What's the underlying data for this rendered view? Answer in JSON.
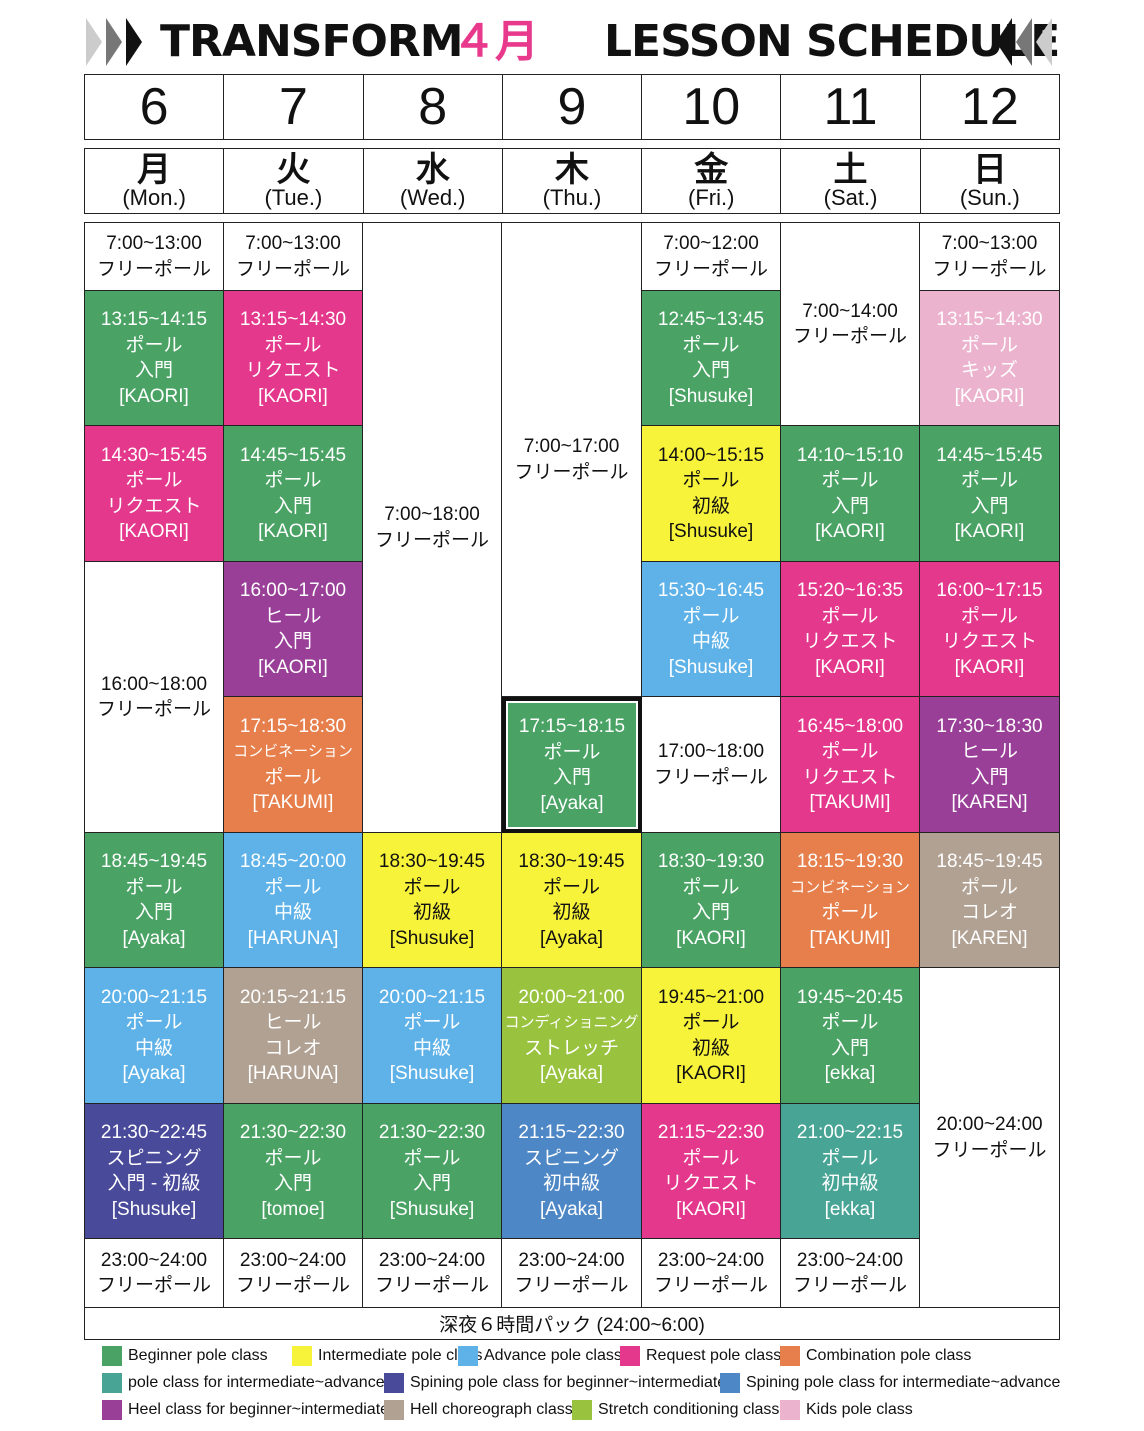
{
  "header": {
    "brand": "TRANSFORM",
    "month": "４月",
    "subtitle": "LESSON SCHEDULE",
    "month_color": "#e8398d"
  },
  "dates": [
    "6",
    "7",
    "8",
    "9",
    "10",
    "11",
    "12"
  ],
  "days": [
    {
      "kanji": "月",
      "en": "(Mon.)"
    },
    {
      "kanji": "火",
      "en": "(Tue.)"
    },
    {
      "kanji": "水",
      "en": "(Wed.)"
    },
    {
      "kanji": "木",
      "en": "(Thu.)"
    },
    {
      "kanji": "金",
      "en": "(Fri.)"
    },
    {
      "kanji": "土",
      "en": "(Sat.)"
    },
    {
      "kanji": "日",
      "en": "(Sun.)"
    }
  ],
  "colors": {
    "beginner": "#4aa365",
    "intermediate": "#f7f23a",
    "advance": "#5fb2e8",
    "request": "#e3388c",
    "combination": "#e67f4b",
    "inter_adv": "#48a495",
    "spin_beg": "#4a4a9b",
    "spin_inter": "#4e87c6",
    "heel": "#993f98",
    "heel_choreo": "#b0a193",
    "stretch": "#99c33e",
    "kids": "#ecb3ce",
    "free": "#ffffff"
  },
  "slots": [
    {
      "day": 0,
      "r0": 0,
      "r1": 1,
      "type": "free",
      "lines": [
        "7:00~13:00",
        "フリーポール"
      ]
    },
    {
      "day": 0,
      "r0": 1,
      "r1": 3,
      "type": "beginner",
      "lines": [
        "13:15~14:15",
        "ポール",
        "入門",
        "[KAORI]"
      ]
    },
    {
      "day": 0,
      "r0": 3,
      "r1": 5,
      "type": "request",
      "lines": [
        "14:30~15:45",
        "ポール",
        "リクエスト",
        "[KAORI]"
      ]
    },
    {
      "day": 0,
      "r0": 5,
      "r1": 9,
      "type": "free",
      "lines": [
        "16:00~18:00",
        "フリーポール"
      ]
    },
    {
      "day": 0,
      "r0": 9,
      "r1": 11,
      "type": "beginner",
      "lines": [
        "18:45~19:45",
        "ポール",
        "入門",
        "[Ayaka]"
      ]
    },
    {
      "day": 0,
      "r0": 11,
      "r1": 13,
      "type": "advance",
      "lines": [
        "20:00~21:15",
        "ポール",
        "中級",
        "[Ayaka]"
      ]
    },
    {
      "day": 0,
      "r0": 13,
      "r1": 15,
      "type": "spin_beg",
      "lines": [
        "21:30~22:45",
        "スピニング",
        "入門 - 初級",
        "[Shusuke]"
      ]
    },
    {
      "day": 0,
      "r0": 15,
      "r1": 16,
      "type": "free",
      "lines": [
        "23:00~24:00",
        "フリーポール"
      ]
    },
    {
      "day": 1,
      "r0": 0,
      "r1": 1,
      "type": "free",
      "lines": [
        "7:00~13:00",
        "フリーポール"
      ]
    },
    {
      "day": 1,
      "r0": 1,
      "r1": 3,
      "type": "request",
      "lines": [
        "13:15~14:30",
        "ポール",
        "リクエスト",
        "[KAORI]"
      ]
    },
    {
      "day": 1,
      "r0": 3,
      "r1": 5,
      "type": "beginner",
      "lines": [
        "14:45~15:45",
        "ポール",
        "入門",
        "[KAORI]"
      ]
    },
    {
      "day": 1,
      "r0": 5,
      "r1": 7,
      "type": "heel",
      "lines": [
        "16:00~17:00",
        "ヒール",
        "入門",
        "[KAORI]"
      ]
    },
    {
      "day": 1,
      "r0": 7,
      "r1": 9,
      "type": "combination",
      "small": 1,
      "lines": [
        "17:15~18:30",
        "コンビネーション",
        "ポール",
        "[TAKUMI]"
      ]
    },
    {
      "day": 1,
      "r0": 9,
      "r1": 11,
      "type": "advance",
      "lines": [
        "18:45~20:00",
        "ポール",
        "中級",
        "[HARUNA]"
      ]
    },
    {
      "day": 1,
      "r0": 11,
      "r1": 13,
      "type": "heel_choreo",
      "lines": [
        "20:15~21:15",
        "ヒール",
        "コレオ",
        "[HARUNA]"
      ]
    },
    {
      "day": 1,
      "r0": 13,
      "r1": 15,
      "type": "beginner",
      "lines": [
        "21:30~22:30",
        "ポール",
        "入門",
        "[tomoe]"
      ]
    },
    {
      "day": 1,
      "r0": 15,
      "r1": 16,
      "type": "free",
      "lines": [
        "23:00~24:00",
        "フリーポール"
      ]
    },
    {
      "day": 2,
      "r0": 0,
      "r1": 9,
      "type": "free",
      "lines": [
        "7:00~18:00",
        "フリーポール"
      ]
    },
    {
      "day": 2,
      "r0": 9,
      "r1": 11,
      "type": "intermediate",
      "lines": [
        "18:30~19:45",
        "ポール",
        "初級",
        "[Shusuke]"
      ]
    },
    {
      "day": 2,
      "r0": 11,
      "r1": 13,
      "type": "advance",
      "lines": [
        "20:00~21:15",
        "ポール",
        "中級",
        "[Shusuke]"
      ]
    },
    {
      "day": 2,
      "r0": 13,
      "r1": 15,
      "type": "beginner",
      "lines": [
        "21:30~22:30",
        "ポール",
        "入門",
        "[Shusuke]"
      ]
    },
    {
      "day": 2,
      "r0": 15,
      "r1": 16,
      "type": "free",
      "lines": [
        "23:00~24:00",
        "フリーポール"
      ]
    },
    {
      "day": 3,
      "r0": 0,
      "r1": 7,
      "type": "free",
      "lines": [
        "7:00~17:00",
        "フリーポール"
      ]
    },
    {
      "day": 3,
      "r0": 7,
      "r1": 9,
      "type": "beginner",
      "hl": 1,
      "lines": [
        "17:15~18:15",
        "ポール",
        "入門",
        "[Ayaka]"
      ]
    },
    {
      "day": 3,
      "r0": 9,
      "r1": 11,
      "type": "intermediate",
      "lines": [
        "18:30~19:45",
        "ポール",
        "初級",
        "[Ayaka]"
      ]
    },
    {
      "day": 3,
      "r0": 11,
      "r1": 13,
      "type": "stretch",
      "small": 1,
      "lines": [
        "20:00~21:00",
        "コンディショニング",
        "ストレッチ",
        "[Ayaka]"
      ]
    },
    {
      "day": 3,
      "r0": 13,
      "r1": 15,
      "type": "spin_inter",
      "lines": [
        "21:15~22:30",
        "スピニング",
        "初中級",
        "[Ayaka]"
      ]
    },
    {
      "day": 3,
      "r0": 15,
      "r1": 16,
      "type": "free",
      "lines": [
        "23:00~24:00",
        "フリーポール"
      ]
    },
    {
      "day": 4,
      "r0": 0,
      "r1": 1,
      "type": "free",
      "lines": [
        "7:00~12:00",
        "フリーポール"
      ]
    },
    {
      "day": 4,
      "r0": 1,
      "r1": 3,
      "type": "beginner",
      "lines": [
        "12:45~13:45",
        "ポール",
        "入門",
        "[Shusuke]"
      ]
    },
    {
      "day": 4,
      "r0": 3,
      "r1": 5,
      "type": "intermediate",
      "lines": [
        "14:00~15:15",
        "ポール",
        "初級",
        "[Shusuke]"
      ]
    },
    {
      "day": 4,
      "r0": 5,
      "r1": 7,
      "type": "advance",
      "lines": [
        "15:30~16:45",
        "ポール",
        "中級",
        "[Shusuke]"
      ]
    },
    {
      "day": 4,
      "r0": 7,
      "r1": 9,
      "type": "free",
      "lines": [
        "17:00~18:00",
        "フリーポール"
      ]
    },
    {
      "day": 4,
      "r0": 9,
      "r1": 11,
      "type": "beginner",
      "lines": [
        "18:30~19:30",
        "ポール",
        "入門",
        "[KAORI]"
      ]
    },
    {
      "day": 4,
      "r0": 11,
      "r1": 13,
      "type": "intermediate",
      "lines": [
        "19:45~21:00",
        "ポール",
        "初級",
        "[KAORI]"
      ]
    },
    {
      "day": 4,
      "r0": 13,
      "r1": 15,
      "type": "request",
      "lines": [
        "21:15~22:30",
        "ポール",
        "リクエスト",
        "[KAORI]"
      ]
    },
    {
      "day": 4,
      "r0": 15,
      "r1": 16,
      "type": "free",
      "lines": [
        "23:00~24:00",
        "フリーポール"
      ]
    },
    {
      "day": 5,
      "r0": 0,
      "r1": 3,
      "type": "free",
      "lines": [
        "7:00~14:00",
        "フリーポール"
      ]
    },
    {
      "day": 5,
      "r0": 3,
      "r1": 5,
      "type": "beginner",
      "lines": [
        "14:10~15:10",
        "ポール",
        "入門",
        "[KAORI]"
      ]
    },
    {
      "day": 5,
      "r0": 5,
      "r1": 7,
      "type": "request",
      "lines": [
        "15:20~16:35",
        "ポール",
        "リクエスト",
        "[KAORI]"
      ]
    },
    {
      "day": 5,
      "r0": 7,
      "r1": 9,
      "type": "request",
      "lines": [
        "16:45~18:00",
        "ポール",
        "リクエスト",
        "[TAKUMI]"
      ]
    },
    {
      "day": 5,
      "r0": 9,
      "r1": 11,
      "type": "combination",
      "small": 1,
      "lines": [
        "18:15~19:30",
        "コンビネーション",
        "ポール",
        "[TAKUMI]"
      ]
    },
    {
      "day": 5,
      "r0": 11,
      "r1": 13,
      "type": "beginner",
      "lines": [
        "19:45~20:45",
        "ポール",
        "入門",
        "[ekka]"
      ]
    },
    {
      "day": 5,
      "r0": 13,
      "r1": 15,
      "type": "inter_adv",
      "lines": [
        "21:00~22:15",
        "ポール",
        "初中級",
        "[ekka]"
      ]
    },
    {
      "day": 5,
      "r0": 15,
      "r1": 16,
      "type": "free",
      "lines": [
        "23:00~24:00",
        "フリーポール"
      ]
    },
    {
      "day": 6,
      "r0": 0,
      "r1": 1,
      "type": "free",
      "lines": [
        "7:00~13:00",
        "フリーポール"
      ]
    },
    {
      "day": 6,
      "r0": 1,
      "r1": 3,
      "type": "kids",
      "lines": [
        "13:15~14:30",
        "ポール",
        "キッズ",
        "[KAORI]"
      ]
    },
    {
      "day": 6,
      "r0": 3,
      "r1": 5,
      "type": "beginner",
      "lines": [
        "14:45~15:45",
        "ポール",
        "入門",
        "[KAORI]"
      ]
    },
    {
      "day": 6,
      "r0": 5,
      "r1": 7,
      "type": "request",
      "lines": [
        "16:00~17:15",
        "ポール",
        "リクエスト",
        "[KAORI]"
      ]
    },
    {
      "day": 6,
      "r0": 7,
      "r1": 9,
      "type": "heel",
      "lines": [
        "17:30~18:30",
        "ヒール",
        "入門",
        "[KAREN]"
      ]
    },
    {
      "day": 6,
      "r0": 9,
      "r1": 11,
      "type": "heel_choreo",
      "lines": [
        "18:45~19:45",
        "ポール",
        "コレオ",
        "[KAREN]"
      ]
    },
    {
      "day": 6,
      "r0": 11,
      "r1": 16,
      "type": "free",
      "lines": [
        "20:00~24:00",
        "フリーポール"
      ]
    }
  ],
  "night_pack": "深夜６時間パック (24:00~6:00)",
  "legend": [
    {
      "type": "beginner",
      "label": "Beginner pole class"
    },
    {
      "type": "intermediate",
      "label": "Intermediate pole class"
    },
    {
      "type": "advance",
      "label": "Advance pole class"
    },
    {
      "type": "request",
      "label": "Request pole class"
    },
    {
      "type": "combination",
      "label": "Combination pole class"
    },
    {
      "type": "inter_adv",
      "label": "pole class for intermediate~advance"
    },
    {
      "type": "spin_beg",
      "label": "Spining pole class for beginner~intermediate"
    },
    {
      "type": "spin_inter",
      "label": "Spining pole class for intermediate~advance"
    },
    {
      "type": "heel",
      "label": "Heel class for beginner~intermediate"
    },
    {
      "type": "heel_choreo",
      "label": "Hell choreograph class"
    },
    {
      "type": "stretch",
      "label": "Stretch conditioning class"
    },
    {
      "type": "kids",
      "label": "Kids pole class"
    }
  ]
}
